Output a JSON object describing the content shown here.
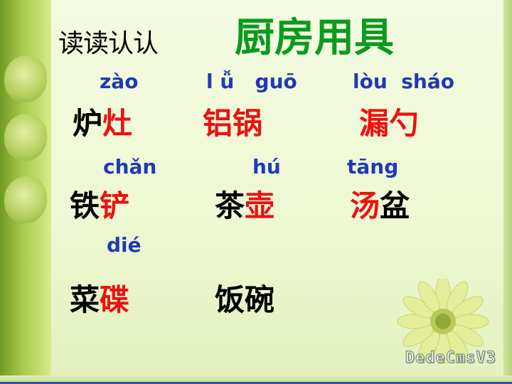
{
  "heading": {
    "read_label": "读读认认",
    "title": "厨房用具"
  },
  "items": [
    {
      "pinyin": "zào",
      "plain": "炉",
      "target": "灶",
      "order": "plain-first"
    },
    {
      "pinyin": "l ǚ   guō",
      "plain": "",
      "target": "铝锅",
      "order": "plain-first"
    },
    {
      "pinyin": "lòu  sháo",
      "plain": "",
      "target": "漏勺",
      "order": "plain-first"
    },
    {
      "pinyin": "chǎn",
      "plain": "铁",
      "target": "铲",
      "order": "plain-first"
    },
    {
      "pinyin": "hú",
      "plain": "茶",
      "target": "壶",
      "order": "plain-first"
    },
    {
      "pinyin": "tāng",
      "plain": "盆",
      "target": "汤",
      "order": "target-first"
    },
    {
      "pinyin": "dié",
      "plain": "菜",
      "target": "碟",
      "order": "plain-first"
    },
    {
      "pinyin": "",
      "plain": "饭碗",
      "target": "",
      "order": "plain-first"
    }
  ],
  "watermark": "DedeCmsV3",
  "colors": {
    "title": "#0b9a1e",
    "pinyin": "#1f3ab6",
    "target": "#ee1010",
    "plain": "#000000"
  }
}
